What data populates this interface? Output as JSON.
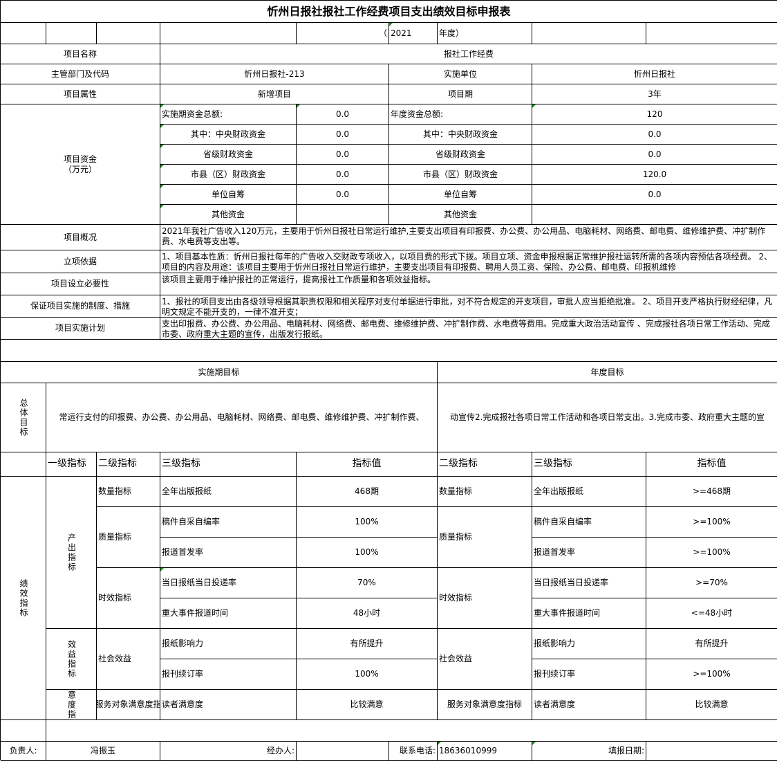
{
  "title": "忻州日报社报社工作经费项目支出绩效目标申报表",
  "year": {
    "open": "（",
    "value": "2021",
    "close": "年度）"
  },
  "project": {
    "name_label": "项目名称",
    "name": "报社工作经费",
    "dept_label": "主管部门及代码",
    "dept": "忻州日报社-213",
    "unit_label": "实施单位",
    "unit": "忻州日报社",
    "attr_label": "项目属性",
    "attr": "新增项目",
    "period_label": "项目期",
    "period": "3年"
  },
  "funds": {
    "label": "项目资金\n（万元）",
    "rows": [
      {
        "label": "实施期资金总额:",
        "value": "0.0",
        "label2": "年度资金总额:",
        "value2": "120"
      },
      {
        "label": "其中：中央财政资金",
        "value": "0.0",
        "label2": "其中：中央财政资金",
        "value2": "0.0"
      },
      {
        "label": "省级财政资金",
        "value": "0.0",
        "label2": "省级财政资金",
        "value2": "0.0"
      },
      {
        "label": "市县（区）财政资金",
        "value": "0.0",
        "label2": "市县（区）财政资金",
        "value2": "120.0"
      },
      {
        "label": "单位自筹",
        "value": "0.0",
        "label2": "单位自筹",
        "value2": "0.0"
      },
      {
        "label": "其他资金",
        "value": "",
        "label2": "其他资金",
        "value2": ""
      }
    ]
  },
  "overview": {
    "label": "项目概况",
    "text": "2021年我社广告收入120万元，主要用于忻州日报社日常运行维护,主要支出项目有印报费、办公费、办公用品、电脑耗材、网络费、邮电费、维修维护费、冲扩制作费、水电费等支出等。"
  },
  "basis": {
    "label": "立项依据",
    "text": "1、项目基本性质：忻州日报社每年的广告收入交财政专项收入，以项目费的形式下拨。项目立项、资金申报根据正常维护报社运转所需的各项内容预估各项经费。 2、项目的内容及用途：该项目主要用于忻州日报社日常运行维护，主要支出项目有印报费、聘用人员工资、保险、办公费、邮电费、印报机维修"
  },
  "necessity": {
    "label": "项目设立必要性",
    "text": "该项目主要用于维护报社的正常运行，提高报社工作质量和各项效益指标。"
  },
  "measures": {
    "label": "保证项目实施的制度、措施",
    "text": "1、报社的项目支出由各级领导根据其职责权限和相关程序对支付单据进行审批，对不符合规定的开支项目，审批人应当拒绝批准。 2、项目开支严格执行财经纪律，凡明文规定不能开支的，一律不准开支；"
  },
  "plan": {
    "label": "项目实施计划",
    "text": "支出印报费、办公费、办公用品、电脑耗材、网络费、邮电费、维修维护费、冲扩制作费、水电费等费用。完成重大政治活动宣传 、完成报社各项日常工作活动、完成市委、政府重大主题的宣传，出版发行报纸。"
  },
  "goals": {
    "period_header": "实施期目标",
    "annual_header": "年度目标",
    "overall_label": "总体目标",
    "period_text": "常运行支付的印报费、办公费、办公用品、电脑耗材、网络费、邮电费、维修维护费、冲扩制作费、",
    "annual_text": "动宣传2.完成报社各项日常工作活动和各项日常支出。3.完成市委、政府重大主题的宣"
  },
  "indicators": {
    "headers": {
      "l1": "一级指标",
      "l2": "二级指标",
      "l3": "三级指标",
      "val": "指标值",
      "l2b": "二级指标",
      "l3b": "三级指标",
      "valb": "指标值"
    },
    "perf_label": "绩效指标",
    "level1": {
      "output": "产出指标",
      "benefit": "效益指标",
      "satisfaction": "意度指"
    },
    "level2": {
      "quantity": "数量指标",
      "quality": "质量指标",
      "timeliness": "时效指标",
      "social": "社会效益",
      "service": "服务对象满意度指",
      "quantity_b": "数量指标",
      "quality_b": "质量指标",
      "timeliness_b": "时效指标",
      "social_b": "社会效益",
      "service_b": "服务对象满意度指标"
    },
    "rows": [
      {
        "l3": "全年出版报纸",
        "val": "468期",
        "l3b": "全年出版报纸",
        "valb": ">=468期"
      },
      {
        "l3": "稿件自采自编率",
        "val": "100%",
        "l3b": "稿件自采自编率",
        "valb": ">=100%"
      },
      {
        "l3": "报道首发率",
        "val": "100%",
        "l3b": "报道首发率",
        "valb": ">=100%"
      },
      {
        "l3": "当日报纸当日投递率",
        "val": "70%",
        "l3b": "当日报纸当日投递率",
        "valb": ">=70%"
      },
      {
        "l3": "重大事件报道时间",
        "val": "48小时",
        "l3b": "重大事件报道时间",
        "valb": "<=48小时"
      },
      {
        "l3": "报纸影响力",
        "val": "有所提升",
        "l3b": "报纸影响力",
        "valb": "有所提升"
      },
      {
        "l3": "报刊续订率",
        "val": "100%",
        "l3b": "报刊续订率",
        "valb": ">=100%"
      },
      {
        "l3": "读者满意度",
        "val": "比较满意",
        "l3b": "读者满意度",
        "valb": "比较满意"
      }
    ]
  },
  "footer": {
    "owner_label": "负责人:",
    "owner": "冯振玉",
    "handler_label": "经办人:",
    "phone_label": "联系电话:",
    "phone": "18636010999",
    "date_label": "填报日期:"
  },
  "colors": {
    "grid": "#000000",
    "marker": "#1a8a1a"
  }
}
